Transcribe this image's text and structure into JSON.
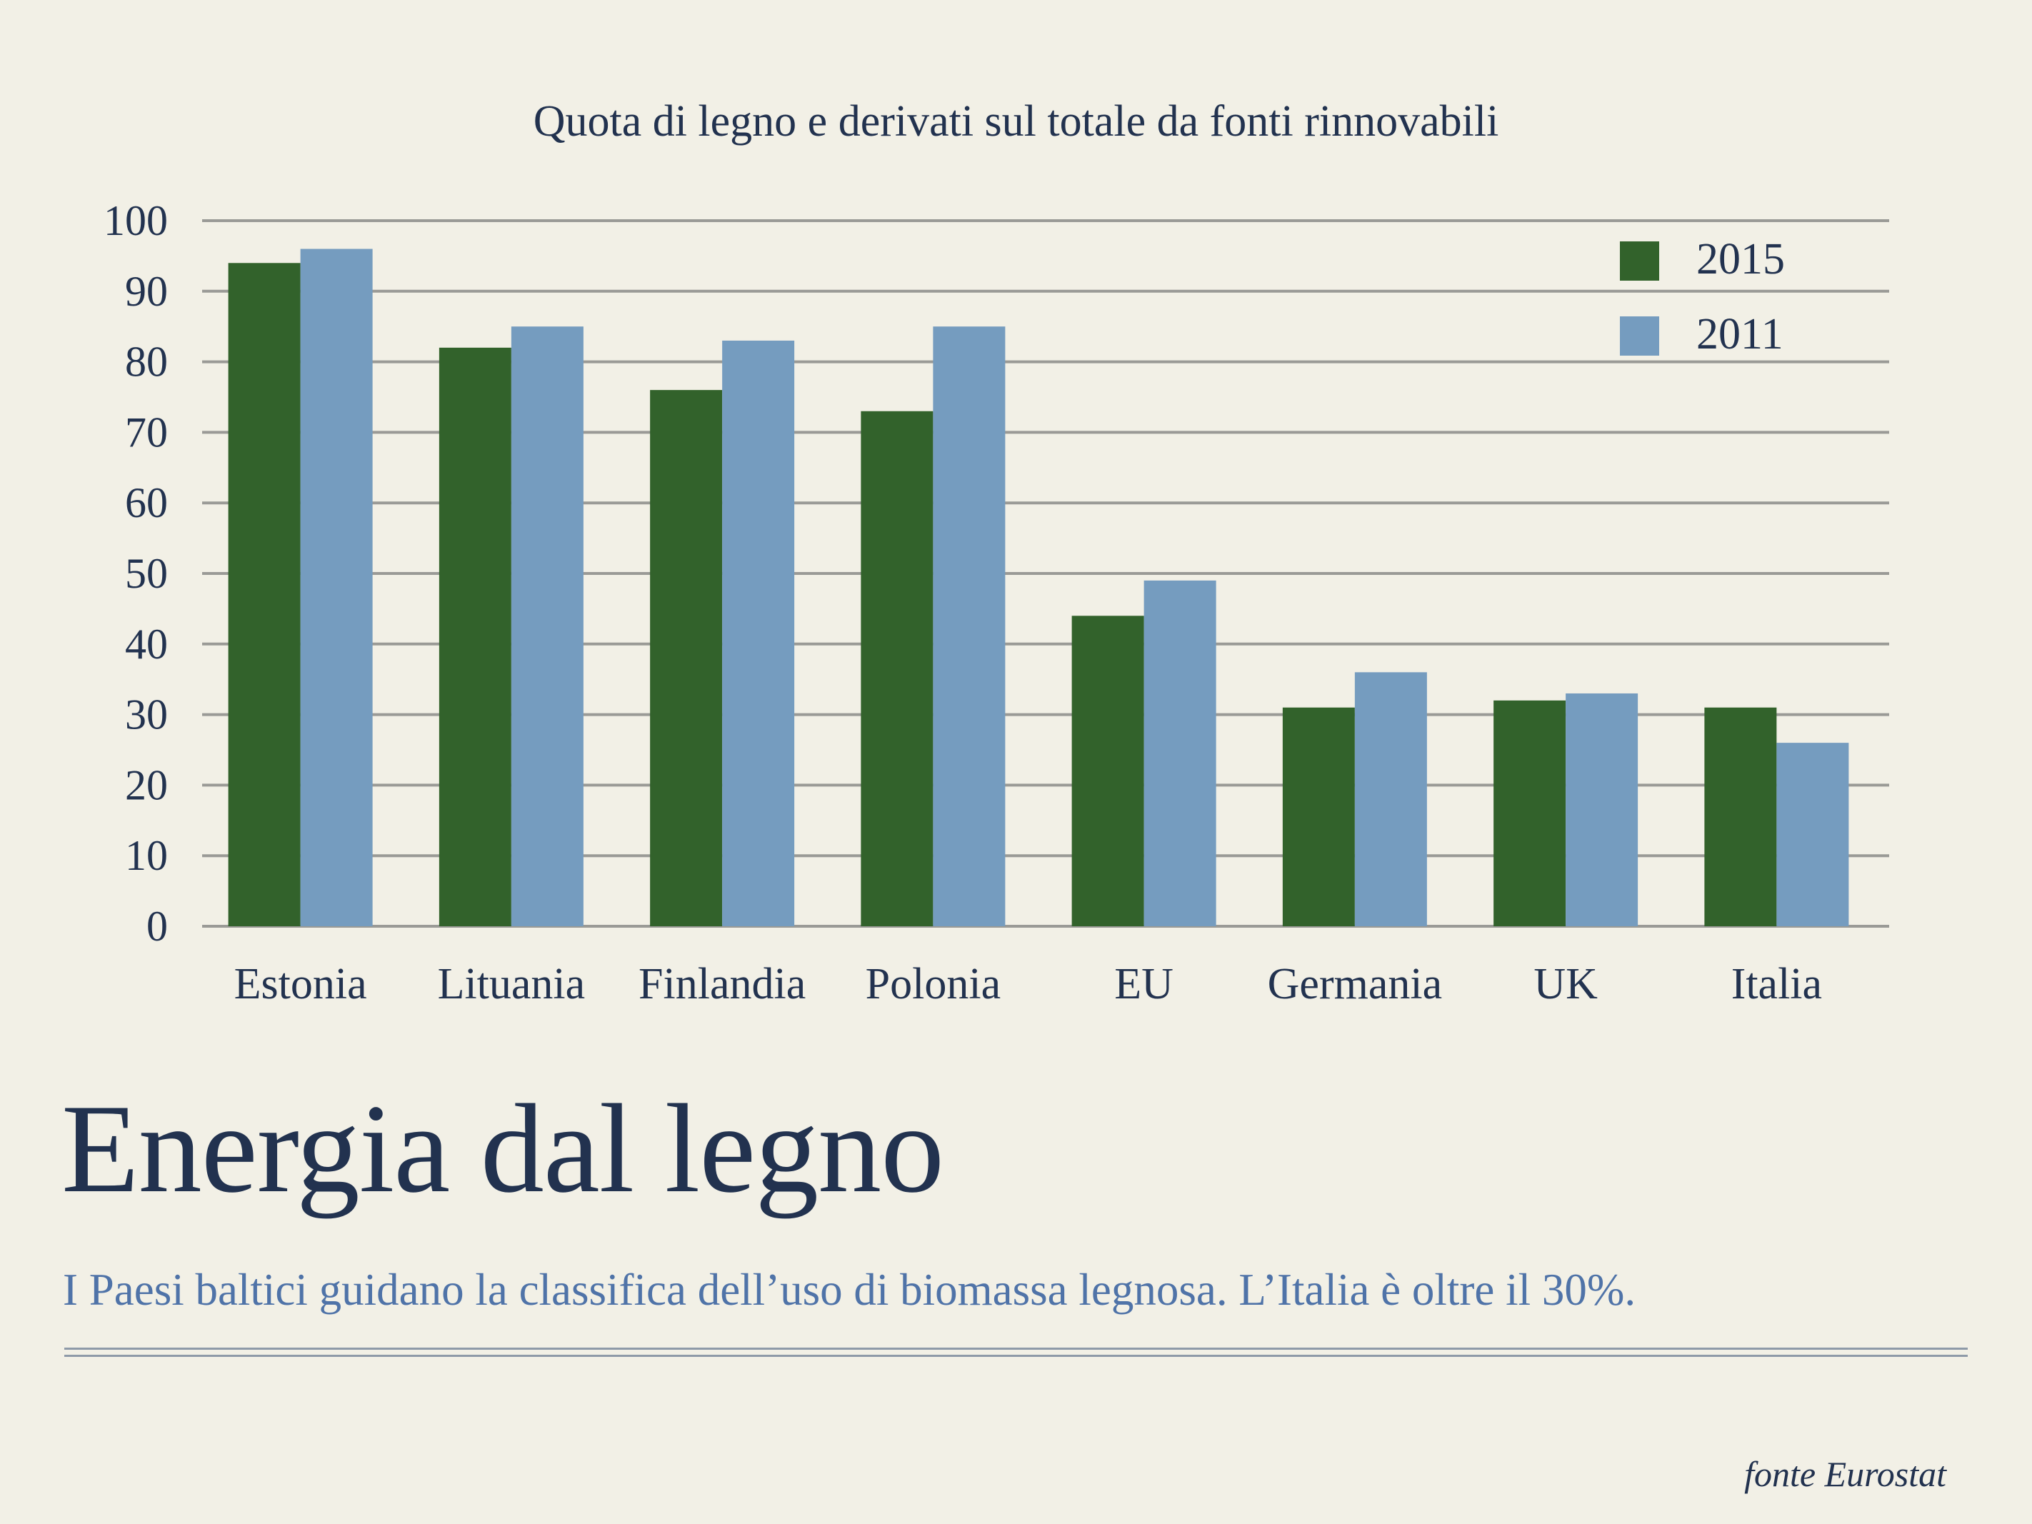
{
  "heading": "Energia dal legno",
  "subtitle": "I Paesi baltici guidano la classifica dell’uso di biomassa legnosa. L’Italia è oltre il 30%.",
  "source": "fonte Eurostat",
  "chart_data": {
    "type": "bar",
    "title": "Quota di legno e derivati sul totale da fonti rinnovabili",
    "xlabel": "",
    "ylabel": "",
    "ylim": [
      0,
      100
    ],
    "yticks": [
      "0",
      "10",
      "20",
      "30",
      "40",
      "50",
      "60",
      "70",
      "80",
      "90",
      "100"
    ],
    "grid": true,
    "legend_position": "top-right",
    "categories": [
      "Estonia",
      "Lituania",
      "Finlandia",
      "Polonia",
      "EU",
      "Germania",
      "UK",
      "Italia"
    ],
    "series": [
      {
        "name": "2015",
        "color": "#32622b",
        "values": [
          94,
          82,
          76,
          73,
          44,
          31,
          32,
          31
        ]
      },
      {
        "name": "2011",
        "color": "#759cbf",
        "values": [
          96,
          85,
          83,
          85,
          49,
          36,
          33,
          26
        ]
      }
    ]
  }
}
